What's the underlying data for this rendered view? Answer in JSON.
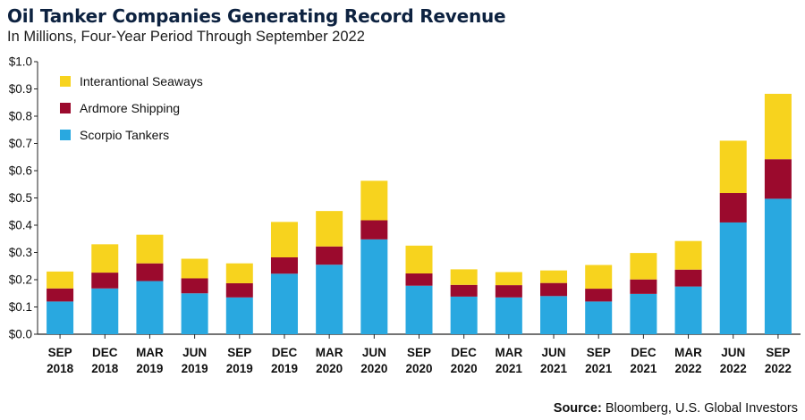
{
  "title": "Oil Tanker Companies Generating Record Revenue",
  "subtitle": "In Millions, Four-Year Period Through September 2022",
  "source": {
    "label": "Source:",
    "text": "Bloomberg, U.S. Global Investors"
  },
  "chart_data": {
    "type": "bar",
    "stacked": true,
    "categories": [
      [
        "SEP",
        "2018"
      ],
      [
        "DEC",
        "2018"
      ],
      [
        "MAR",
        "2019"
      ],
      [
        "JUN",
        "2019"
      ],
      [
        "SEP",
        "2019"
      ],
      [
        "DEC",
        "2019"
      ],
      [
        "MAR",
        "2020"
      ],
      [
        "JUN",
        "2020"
      ],
      [
        "SEP",
        "2020"
      ],
      [
        "DEC",
        "2020"
      ],
      [
        "MAR",
        "2021"
      ],
      [
        "JUN",
        "2021"
      ],
      [
        "SEP",
        "2021"
      ],
      [
        "DEC",
        "2021"
      ],
      [
        "MAR",
        "2022"
      ],
      [
        "JUN",
        "2022"
      ],
      [
        "SEP",
        "2022"
      ]
    ],
    "series": [
      {
        "name": "Scorpio Tankers",
        "color": "#29a8e0",
        "values": [
          0.12,
          0.168,
          0.195,
          0.15,
          0.135,
          0.222,
          0.255,
          0.348,
          0.178,
          0.138,
          0.135,
          0.14,
          0.12,
          0.148,
          0.175,
          0.41,
          0.497
        ]
      },
      {
        "name": "Ardmore Shipping",
        "color": "#9b0a2d",
        "values": [
          0.048,
          0.058,
          0.065,
          0.055,
          0.052,
          0.06,
          0.067,
          0.07,
          0.045,
          0.043,
          0.045,
          0.048,
          0.047,
          0.053,
          0.062,
          0.108,
          0.145
        ]
      },
      {
        "name": "Interantional Seaways",
        "color": "#f7d31e",
        "values": [
          0.062,
          0.104,
          0.105,
          0.072,
          0.073,
          0.13,
          0.13,
          0.145,
          0.102,
          0.057,
          0.048,
          0.046,
          0.087,
          0.097,
          0.105,
          0.192,
          0.24
        ]
      }
    ],
    "legend_order": [
      "Interantional Seaways",
      "Ardmore Shipping",
      "Scorpio Tankers"
    ],
    "legend_position": "top-left",
    "ylim": [
      0,
      1.0
    ],
    "yticks": [
      "$0.0",
      "$0.1",
      "$0.2",
      "$0.3",
      "$0.4",
      "$0.5",
      "$0.6",
      "$0.7",
      "$0.8",
      "$0.9",
      "$1.0"
    ],
    "grid": false
  }
}
